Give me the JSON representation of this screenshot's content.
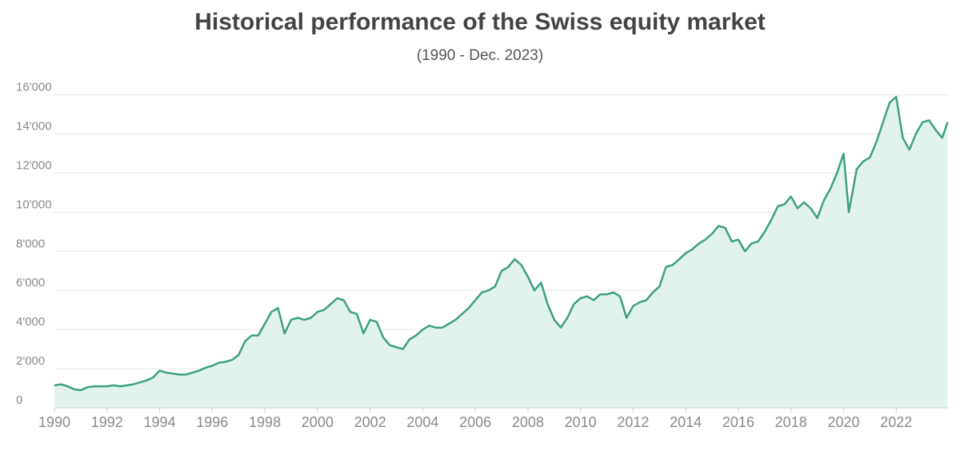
{
  "chart_data": {
    "type": "area",
    "title": "Historical performance of the Swiss equity market",
    "subtitle": "(1990 - Dec. 2023)",
    "color": "#3e9f85",
    "fill": "#e2f3ee",
    "grid": true,
    "x": [
      1990,
      1990.25,
      1990.5,
      1990.75,
      1991,
      1991.25,
      1991.5,
      1991.75,
      1992,
      1992.25,
      1992.5,
      1992.75,
      1993,
      1993.25,
      1993.5,
      1993.75,
      1994,
      1994.25,
      1994.5,
      1994.75,
      1995,
      1995.25,
      1995.5,
      1995.75,
      1996,
      1996.25,
      1996.5,
      1996.75,
      1997,
      1997.25,
      1997.5,
      1997.75,
      1998,
      1998.25,
      1998.5,
      1998.75,
      1999,
      1999.25,
      1999.5,
      1999.75,
      2000,
      2000.25,
      2000.5,
      2000.75,
      2001,
      2001.25,
      2001.5,
      2001.75,
      2002,
      2002.25,
      2002.5,
      2002.75,
      2003,
      2003.25,
      2003.5,
      2003.75,
      2004,
      2004.25,
      2004.5,
      2004.75,
      2005,
      2005.25,
      2005.5,
      2005.75,
      2006,
      2006.25,
      2006.5,
      2006.75,
      2007,
      2007.25,
      2007.5,
      2007.75,
      2008,
      2008.25,
      2008.5,
      2008.75,
      2009,
      2009.25,
      2009.5,
      2009.75,
      2010,
      2010.25,
      2010.5,
      2010.75,
      2011,
      2011.25,
      2011.5,
      2011.75,
      2012,
      2012.25,
      2012.5,
      2012.75,
      2013,
      2013.25,
      2013.5,
      2013.75,
      2014,
      2014.25,
      2014.5,
      2014.75,
      2015,
      2015.25,
      2015.5,
      2015.75,
      2016,
      2016.25,
      2016.5,
      2016.75,
      2017,
      2017.25,
      2017.5,
      2017.75,
      2018,
      2018.25,
      2018.5,
      2018.75,
      2019,
      2019.25,
      2019.5,
      2019.75,
      2020,
      2020.2,
      2020.5,
      2020.75,
      2021,
      2021.25,
      2021.5,
      2021.75,
      2022,
      2022.25,
      2022.5,
      2022.75,
      2023,
      2023.25,
      2023.5,
      2023.75,
      2023.95
    ],
    "values": [
      1150,
      1200,
      1100,
      950,
      900,
      1050,
      1100,
      1100,
      1100,
      1150,
      1100,
      1150,
      1200,
      1300,
      1400,
      1550,
      1900,
      1800,
      1750,
      1700,
      1700,
      1800,
      1900,
      2050,
      2150,
      2300,
      2350,
      2450,
      2700,
      3400,
      3700,
      3700,
      4300,
      4900,
      5100,
      3800,
      4500,
      4600,
      4500,
      4600,
      4900,
      5000,
      5300,
      5600,
      5500,
      4900,
      4800,
      3800,
      4500,
      4400,
      3600,
      3200,
      3100,
      3000,
      3500,
      3700,
      4000,
      4200,
      4100,
      4100,
      4300,
      4500,
      4800,
      5100,
      5500,
      5900,
      6000,
      6200,
      7000,
      7200,
      7600,
      7300,
      6700,
      6000,
      6400,
      5300,
      4500,
      4100,
      4600,
      5300,
      5600,
      5700,
      5500,
      5800,
      5800,
      5900,
      5700,
      4600,
      5200,
      5400,
      5500,
      5900,
      6200,
      7200,
      7300,
      7600,
      7900,
      8100,
      8400,
      8600,
      8900,
      9300,
      9200,
      8500,
      8600,
      8000,
      8400,
      8500,
      9000,
      9600,
      10300,
      10400,
      10800,
      10200,
      10500,
      10200,
      9700,
      10600,
      11200,
      12000,
      13000,
      10000,
      12200,
      12600,
      12800,
      13600,
      14600,
      15600,
      15900,
      13800,
      13200,
      14000,
      14600,
      14700,
      14200,
      13800,
      14600
    ],
    "xlim": [
      1990,
      2024
    ],
    "xticks": [
      1990,
      1992,
      1994,
      1996,
      1998,
      2000,
      2002,
      2004,
      2006,
      2008,
      2010,
      2012,
      2014,
      2016,
      2018,
      2020,
      2022
    ],
    "ylim": [
      0,
      16800
    ],
    "yticks": [
      0,
      {
        "value": 2000,
        "label": "2'000"
      },
      {
        "value": 4000,
        "label": "4'000"
      },
      {
        "value": 6000,
        "label": "6'000"
      },
      {
        "value": 8000,
        "label": "8'000"
      },
      {
        "value": 10000,
        "label": "10'000"
      },
      {
        "value": 12000,
        "label": "12'000"
      },
      {
        "value": 14000,
        "label": "14'000"
      },
      {
        "value": 16000,
        "label": "16'000"
      }
    ]
  }
}
